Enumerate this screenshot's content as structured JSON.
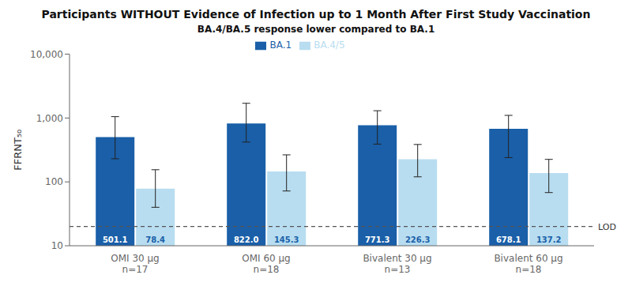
{
  "chart_data": {
    "type": "bar",
    "title": "Participants WITHOUT Evidence of Infection up to 1 Month After First Study Vaccination",
    "subtitle": "BA.4/BA.5 response lower compared to BA.1",
    "y_label": "FFRNT₅₀",
    "categories": [
      "OMI 30  μg\nn=17",
      "OMI 60  μg\nn=18",
      "Bivalent 30  μg\nn=13",
      "Bivalent 60  μg\nn=18"
    ],
    "series": [
      {
        "name": "BA.1",
        "color": "#1a5fa8",
        "values": [
          501.1,
          822.0,
          771.3,
          678.1
        ],
        "value_labels": [
          "501.1",
          "822.0",
          "771.3",
          "678.1"
        ],
        "error_low": [
          230,
          420,
          390,
          240
        ],
        "error_high": [
          1050,
          1700,
          1300,
          1100
        ]
      },
      {
        "name": "BA.4/5",
        "color": "#b8ddf0",
        "values": [
          78.4,
          145.3,
          226.3,
          137.2
        ],
        "value_labels": [
          "78.4",
          "145.3",
          "226.3",
          "137.2"
        ],
        "error_low": [
          40,
          72,
          120,
          68
        ],
        "error_high": [
          155,
          265,
          385,
          225
        ]
      }
    ],
    "log": "y",
    "ylim": [
      10,
      10000
    ],
    "yticks": [
      10,
      100,
      {
        "value": 1000,
        "label": "1,000"
      },
      {
        "value": 10000,
        "label": "10,000"
      }
    ],
    "grid": false,
    "legend": "top",
    "data_labels": true,
    "annotations": [
      {
        "text": "LOD",
        "y": 20,
        "color": "#555555",
        "line_style": "dashed"
      }
    ]
  }
}
